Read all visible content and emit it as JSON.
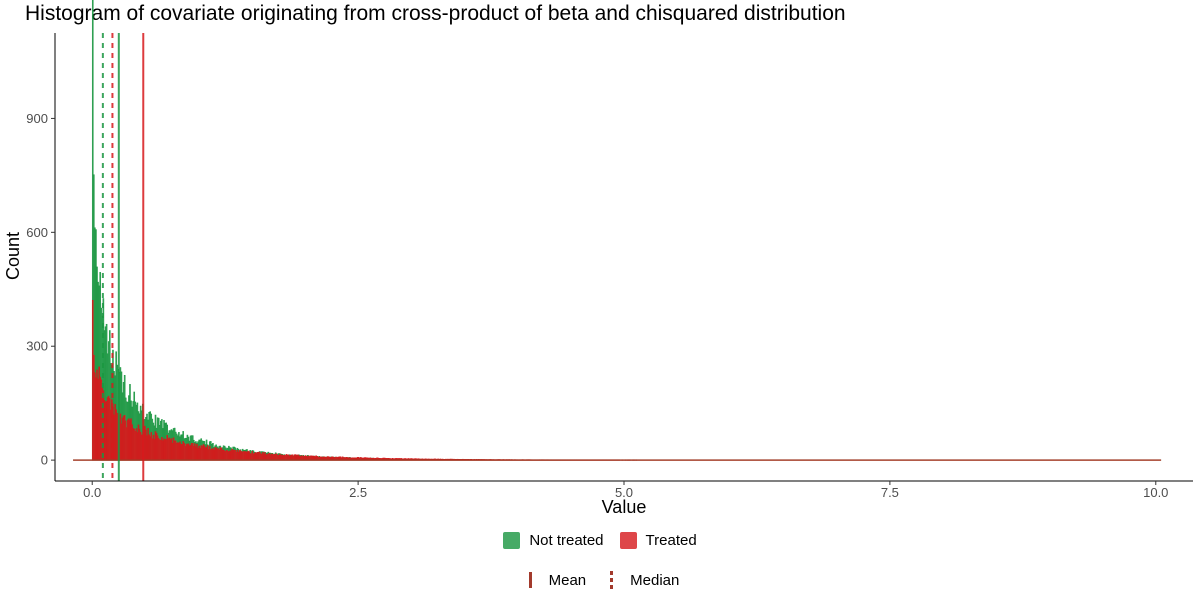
{
  "chart_data": {
    "type": "histogram",
    "title": "Histogram of covariate originating from cross-product of beta and chisquared distribution",
    "xlabel": "Value",
    "ylabel": "Count",
    "xlim": [
      -0.35,
      10.35
    ],
    "ylim": [
      -55,
      1125
    ],
    "x_ticks": [
      0,
      2.5,
      5,
      7.5,
      10
    ],
    "x_tick_labels": [
      "0.0",
      "2.5",
      "5.0",
      "7.5",
      "10.0"
    ],
    "y_ticks": [
      0,
      300,
      600,
      900
    ],
    "y_tick_labels": [
      "0",
      "300",
      "600",
      "900"
    ],
    "grid": false,
    "legend_position": "bottom",
    "series": [
      {
        "name": "Not treated",
        "color": "#1a9641",
        "shape_k": 0.6,
        "scale": 0.8,
        "peak_count": 1080,
        "baseline_range": [
          -0.18,
          10.05
        ],
        "mean": 0.25,
        "median": 0.1
      },
      {
        "name": "Treated",
        "color": "#d7191c",
        "shape_k": 0.7,
        "scale": 1.0,
        "peak_count": 390,
        "baseline_range": [
          -0.18,
          10.05
        ],
        "mean": 0.48,
        "median": 0.19
      }
    ],
    "legend": {
      "fill": [
        "Not treated",
        "Treated"
      ],
      "linetype": [
        "Mean",
        "Median"
      ]
    }
  }
}
